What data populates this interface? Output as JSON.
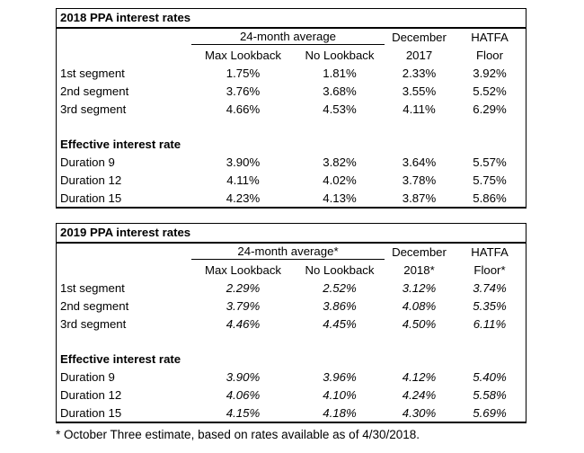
{
  "tables": [
    {
      "title": "2018 PPA interest rates",
      "group_header": "24-month average",
      "max_lookback": "Max Lookback",
      "no_lookback": "No Lookback",
      "dec_line1": "December",
      "dec_line2": "2017",
      "hatfa_line1": "HATFA",
      "hatfa_line2": "Floor",
      "segment_rows": [
        {
          "label": "1st segment",
          "values": [
            "1.75%",
            "1.81%",
            "2.33%",
            "3.92%"
          ]
        },
        {
          "label": "2nd segment",
          "values": [
            "3.76%",
            "3.68%",
            "3.55%",
            "5.52%"
          ]
        },
        {
          "label": "3rd segment",
          "values": [
            "4.66%",
            "4.53%",
            "4.11%",
            "6.29%"
          ]
        }
      ],
      "section_header": "Effective interest rate",
      "duration_rows": [
        {
          "label": "Duration 9",
          "values": [
            "3.90%",
            "3.82%",
            "3.64%",
            "5.57%"
          ]
        },
        {
          "label": "Duration 12",
          "values": [
            "4.11%",
            "4.02%",
            "3.78%",
            "5.75%"
          ]
        },
        {
          "label": "Duration 15",
          "values": [
            "4.23%",
            "4.13%",
            "3.87%",
            "5.86%"
          ]
        }
      ]
    },
    {
      "title": "2019 PPA interest rates",
      "group_header": "24-month average*",
      "max_lookback": "Max Lookback",
      "no_lookback": "No Lookback",
      "dec_line1": "December",
      "dec_line2": "2018*",
      "hatfa_line1": "HATFA",
      "hatfa_line2": "Floor*",
      "segment_rows": [
        {
          "label": "1st segment",
          "values": [
            "2.29%",
            "2.52%",
            "3.12%",
            "3.74%"
          ]
        },
        {
          "label": "2nd segment",
          "values": [
            "3.79%",
            "3.86%",
            "4.08%",
            "5.35%"
          ]
        },
        {
          "label": "3rd segment",
          "values": [
            "4.46%",
            "4.45%",
            "4.50%",
            "6.11%"
          ]
        }
      ],
      "section_header": "Effective interest rate",
      "duration_rows": [
        {
          "label": "Duration 9",
          "values": [
            "3.90%",
            "3.96%",
            "4.12%",
            "5.40%"
          ]
        },
        {
          "label": "Duration 12",
          "values": [
            "4.06%",
            "4.10%",
            "4.24%",
            "5.58%"
          ]
        },
        {
          "label": "Duration 15",
          "values": [
            "4.15%",
            "4.18%",
            "4.30%",
            "5.69%"
          ]
        }
      ]
    }
  ],
  "footnote": "* October Three estimate, based on rates available as of 4/30/2018."
}
